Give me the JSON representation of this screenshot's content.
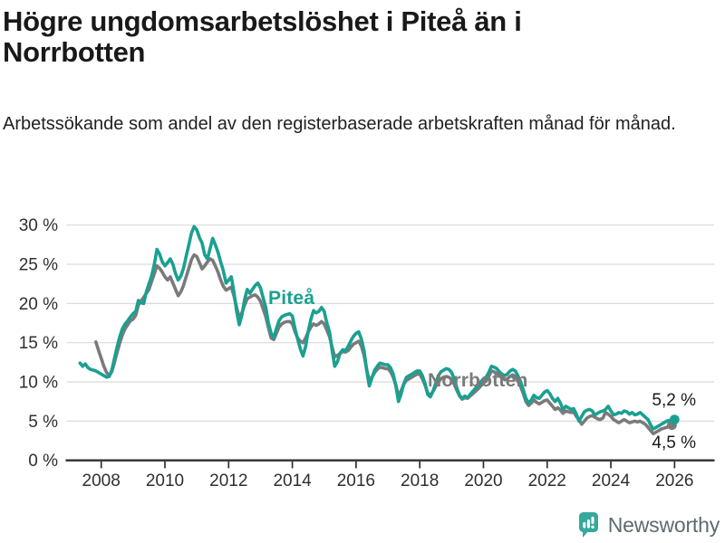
{
  "header": {
    "title": "Högre ungdomsarbetslöshet i Piteå än i Norrbotten",
    "subtitle": "Arbetssökande som andel av den registerbaserade arbetskraften månad för månad."
  },
  "colors": {
    "pitea": "#1aa091",
    "norrbotten": "#7a7a7a",
    "grid": "#dadada",
    "axis": "#2f2f2f",
    "tick_text": "#2f2f2f",
    "title_text": "#191919",
    "brand_icon": "#38a89d",
    "brand_text": "#5d6a72"
  },
  "chart_data": {
    "type": "line",
    "title": "Högre ungdomsarbetslöshet i Piteå än i Norrbotten",
    "xlabel": "",
    "ylabel": "",
    "grid": true,
    "xlim": [
      2007.2,
      2026.4
    ],
    "ylim": [
      0,
      31
    ],
    "x_ticks": [
      2008,
      2010,
      2012,
      2014,
      2016,
      2018,
      2020,
      2022,
      2024,
      2026
    ],
    "x_tick_labels": [
      "2008",
      "2010",
      "2012",
      "2014",
      "2016",
      "2018",
      "2020",
      "2022",
      "2024",
      "2026"
    ],
    "y_ticks": [
      0,
      5,
      10,
      15,
      20,
      25,
      30
    ],
    "y_tick_labels": [
      "0 %",
      "5 %",
      "10 %",
      "15 %",
      "20 %",
      "25 %",
      "30 %"
    ],
    "unit": "%",
    "frequency": "monthly",
    "series": [
      {
        "name": "Norrbotten",
        "color": "#7a7a7a",
        "start_year": 2007,
        "start_month": 11,
        "end_label": "4,5 %",
        "values": [
          15.1,
          14.0,
          13.0,
          12.0,
          11.2,
          10.8,
          11.3,
          12.5,
          13.8,
          15.0,
          16.0,
          16.8,
          17.3,
          17.8,
          18.0,
          18.5,
          19.8,
          20.3,
          20.8,
          21.3,
          21.8,
          22.8,
          23.8,
          24.8,
          24.5,
          24.0,
          23.4,
          23.0,
          23.4,
          22.6,
          21.8,
          21.0,
          21.5,
          22.3,
          23.4,
          24.5,
          25.6,
          26.2,
          26.0,
          25.2,
          24.4,
          24.8,
          25.3,
          25.7,
          25.5,
          24.8,
          24.0,
          23.0,
          22.2,
          21.7,
          21.9,
          22.1,
          21.0,
          19.5,
          18.2,
          18.8,
          19.8,
          20.6,
          20.8,
          21.0,
          21.1,
          20.8,
          20.3,
          19.3,
          18.3,
          16.9,
          15.6,
          15.4,
          16.2,
          17.0,
          17.4,
          17.6,
          17.7,
          17.7,
          17.4,
          16.4,
          15.6,
          15.2,
          15.0,
          15.6,
          16.4,
          17.0,
          17.4,
          17.2,
          17.4,
          17.7,
          17.4,
          16.6,
          15.8,
          14.4,
          13.2,
          13.4,
          13.6,
          13.9,
          13.8,
          14.0,
          14.4,
          14.8,
          15.0,
          15.2,
          14.6,
          13.4,
          11.6,
          10.2,
          10.6,
          11.2,
          11.6,
          11.9,
          11.8,
          11.7,
          11.7,
          11.3,
          10.6,
          9.6,
          8.2,
          8.9,
          9.7,
          10.2,
          10.4,
          10.6,
          10.8,
          11.0,
          11.0,
          10.4,
          9.6,
          8.6,
          8.3,
          8.8,
          9.4,
          10.0,
          10.4,
          10.6,
          10.7,
          10.6,
          10.3,
          9.7,
          8.9,
          8.2,
          7.8,
          8.0,
          7.9,
          8.2,
          8.5,
          8.8,
          9.1,
          9.5,
          9.9,
          10.1,
          10.7,
          11.4,
          11.3,
          11.1,
          10.8,
          10.5,
          10.3,
          10.4,
          10.7,
          10.9,
          10.7,
          10.1,
          9.4,
          8.5,
          7.5,
          7.0,
          7.3,
          7.7,
          7.4,
          7.2,
          7.4,
          7.6,
          7.7,
          7.3,
          6.9,
          6.5,
          6.7,
          6.4,
          6.0,
          6.3,
          6.2,
          6.1,
          6.2,
          5.6,
          5.2,
          4.6,
          5.0,
          5.4,
          5.6,
          5.7,
          5.5,
          5.3,
          5.2,
          5.4,
          6.1,
          5.9,
          5.6,
          5.2,
          5.0,
          4.8,
          5.0,
          5.2,
          5.0,
          4.8,
          4.9,
          5.0,
          4.9,
          5.0,
          4.8,
          4.6,
          4.2,
          3.8,
          3.4,
          3.6,
          3.8,
          4.0,
          4.1,
          4.2,
          4.4,
          4.5
        ]
      },
      {
        "name": "Piteå",
        "color": "#1aa091",
        "start_year": 2007,
        "start_month": 5,
        "end_label": "5,2 %",
        "values": [
          12.4,
          12.0,
          12.3,
          11.8,
          11.6,
          11.5,
          11.4,
          11.2,
          11.0,
          10.8,
          10.6,
          10.7,
          11.5,
          13.0,
          14.5,
          15.8,
          16.8,
          17.4,
          17.8,
          18.3,
          18.7,
          19.0,
          20.4,
          20.1,
          20.0,
          21.5,
          22.5,
          23.5,
          25.0,
          26.9,
          26.3,
          25.3,
          24.8,
          25.2,
          25.7,
          25.0,
          23.8,
          23.0,
          23.5,
          24.5,
          26.0,
          27.5,
          29.0,
          29.8,
          29.4,
          28.4,
          27.7,
          26.2,
          25.7,
          27.0,
          28.3,
          27.5,
          26.5,
          25.3,
          24.2,
          22.6,
          23.0,
          23.4,
          21.5,
          19.0,
          17.3,
          18.5,
          20.5,
          21.8,
          21.3,
          21.8,
          22.3,
          22.6,
          22.0,
          20.7,
          19.5,
          17.5,
          16.2,
          15.6,
          16.8,
          17.8,
          18.3,
          18.5,
          18.6,
          18.7,
          18.4,
          16.8,
          15.5,
          14.2,
          13.3,
          14.5,
          16.5,
          18.0,
          19.1,
          18.8,
          19.0,
          19.5,
          19.0,
          17.5,
          16.4,
          14.0,
          12.0,
          12.6,
          13.7,
          14.1,
          14.0,
          14.5,
          15.2,
          15.8,
          16.2,
          16.4,
          15.5,
          14.0,
          11.5,
          9.5,
          10.5,
          11.5,
          12.0,
          12.4,
          12.3,
          12.2,
          12.2,
          11.8,
          11.0,
          9.5,
          7.5,
          8.5,
          9.8,
          10.6,
          10.8,
          11.0,
          11.2,
          11.4,
          11.4,
          10.8,
          9.8,
          8.4,
          8.1,
          8.8,
          9.8,
          10.8,
          11.3,
          11.5,
          11.7,
          11.6,
          11.2,
          10.4,
          9.2,
          8.3,
          7.9,
          8.2,
          8.0,
          8.4,
          8.8,
          9.2,
          9.6,
          10.0,
          10.4,
          10.6,
          11.2,
          12.0,
          11.9,
          11.7,
          11.3,
          11.0,
          10.8,
          11.0,
          11.4,
          11.6,
          11.4,
          10.8,
          10.0,
          9.0,
          7.9,
          7.3,
          7.7,
          8.3,
          8.0,
          7.9,
          8.3,
          8.7,
          8.9,
          8.5,
          7.9,
          7.5,
          7.9,
          7.3,
          6.5,
          6.9,
          6.7,
          6.5,
          6.6,
          5.9,
          5.0,
          5.6,
          6.2,
          6.4,
          6.5,
          6.3,
          5.8,
          6.0,
          6.2,
          6.3,
          6.5,
          6.9,
          6.3,
          5.8,
          5.9,
          6.1,
          6.0,
          6.3,
          6.2,
          5.9,
          6.1,
          5.8,
          5.9,
          6.1,
          5.8,
          5.5,
          5.2,
          4.5,
          4.0,
          4.2,
          4.4,
          4.6,
          4.8,
          5.0,
          5.1,
          5.1,
          5.2
        ]
      }
    ]
  },
  "footer": {
    "brand": "Newsworthy",
    "logo_icon": "bar-chart-speech-bubble"
  }
}
